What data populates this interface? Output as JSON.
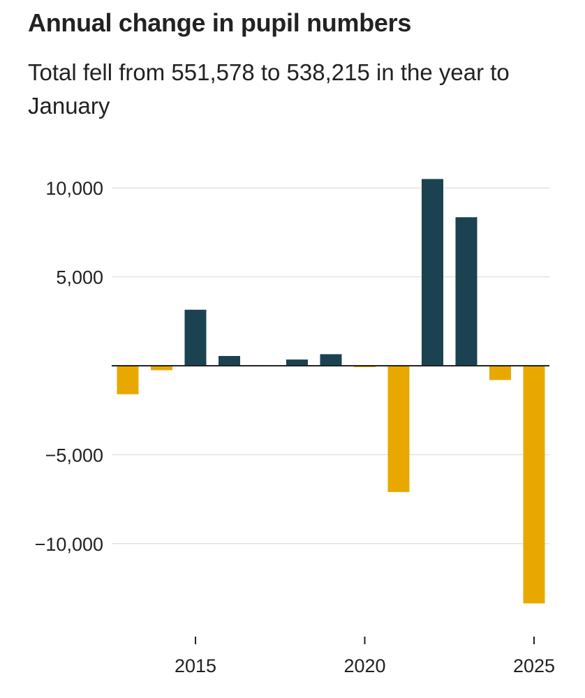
{
  "header": {
    "title": "Annual change in pupil numbers",
    "subtitle": "Total fell from 551,578 to 538,215 in the year to January"
  },
  "chart_data": {
    "type": "bar",
    "title": "Annual change in pupil numbers",
    "subtitle": "Total fell from 551,578 to 538,215 in the year to January",
    "x": [
      2013,
      2014,
      2015,
      2016,
      2017,
      2018,
      2019,
      2020,
      2021,
      2022,
      2023,
      2024,
      2025
    ],
    "values": [
      -1600,
      -250,
      3150,
      550,
      0,
      350,
      650,
      -80,
      -7100,
      10500,
      8350,
      -800,
      -13363
    ],
    "ylim": [
      -14000,
      10500
    ],
    "yticks": [
      10000,
      5000,
      -5000,
      -10000
    ],
    "ytick_labels": [
      "10,000",
      "5,000",
      "−5,000",
      "−10,000"
    ],
    "xticks": [
      2015,
      2020,
      2025
    ],
    "xtick_labels": [
      "2015",
      "2020",
      "2025"
    ],
    "xlabel": "",
    "ylabel": "",
    "grid": true,
    "legend": "none",
    "colors": {
      "positive": "#1b4251",
      "negative": "#e8a800",
      "grid": "#e2e2e2",
      "zero_line": "#222222"
    }
  }
}
